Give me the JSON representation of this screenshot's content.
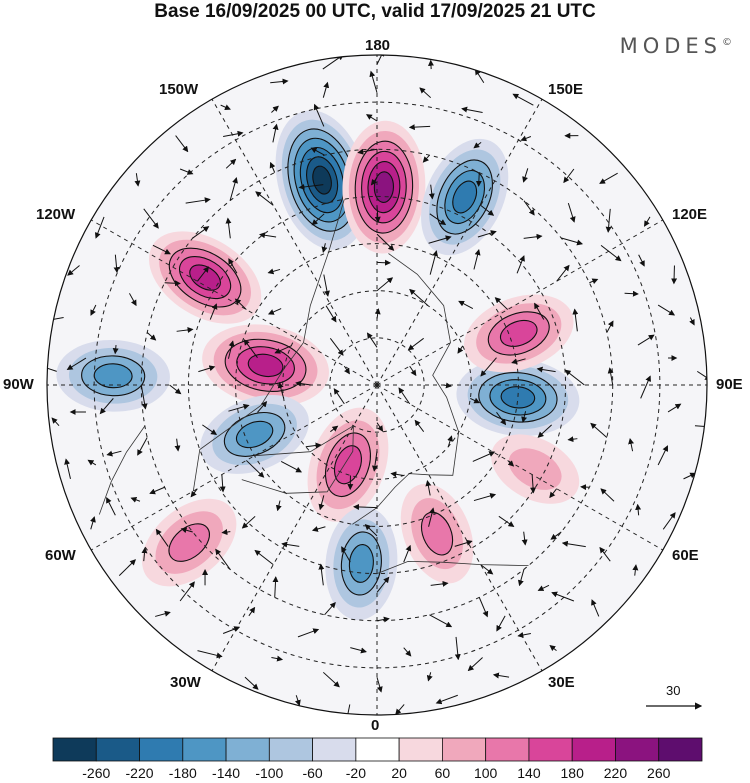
{
  "title": "Base 16/09/2025 00 UTC, valid 17/09/2025 21 UTC",
  "brand": "MODES",
  "brand_mark": "©",
  "longitude_labels": {
    "top": "180",
    "bottom": "0",
    "left": "90W",
    "right": "90E",
    "upper_left": "150W",
    "upper_right": "150E",
    "mid_left_upper": "120W",
    "mid_right_upper": "120E",
    "lower_left": "60W",
    "lower_right": "60E",
    "bottom_left": "30W",
    "bottom_right": "30E"
  },
  "vector_scale": {
    "label": "30"
  },
  "colorbar": {
    "ticks": [
      "-260",
      "-220",
      "-180",
      "-140",
      "-100",
      "-60",
      "-20",
      "20",
      "60",
      "100",
      "140",
      "180",
      "220",
      "260"
    ],
    "colors": [
      "#0e3a5a",
      "#1a5a88",
      "#2f7bb0",
      "#4e96c4",
      "#7fb0d4",
      "#aec6e0",
      "#d8dcec",
      "#ffffff",
      "#f7d8de",
      "#f0a8bc",
      "#e877aa",
      "#d9459a",
      "#b81f8a",
      "#8b137f",
      "#5e0d6e"
    ]
  },
  "anomaly_centers": [
    {
      "id": "neg-alaska",
      "lon": -165,
      "colat": 45,
      "value": -260
    },
    {
      "id": "pos-bering",
      "lon": 178,
      "colat": 42,
      "value": 220
    },
    {
      "id": "neg-east-siberia",
      "lon": 155,
      "colat": 44,
      "value": -180
    },
    {
      "id": "pos-canada-west",
      "lon": -122,
      "colat": 43,
      "value": 180
    },
    {
      "id": "neg-hudson",
      "lon": -92,
      "colat": 56,
      "value": -140
    },
    {
      "id": "pos-canada-arch",
      "lon": -100,
      "colat": 24,
      "value": 200
    },
    {
      "id": "neg-greenland-w",
      "lon": -68,
      "colat": 28,
      "value": -140
    },
    {
      "id": "pos-greenland",
      "lon": -20,
      "colat": 18,
      "value": 160
    },
    {
      "id": "neg-iceland",
      "lon": -5,
      "colat": 38,
      "value": -140
    },
    {
      "id": "pos-north-atlantic",
      "lon": -50,
      "colat": 52,
      "value": 120
    },
    {
      "id": "pos-scandinavia",
      "lon": 22,
      "colat": 34,
      "value": 100
    },
    {
      "id": "neg-siberia",
      "lon": 85,
      "colat": 30,
      "value": -180
    },
    {
      "id": "pos-central-siberia",
      "lon": 110,
      "colat": 32,
      "value": 140
    },
    {
      "id": "pos-kazakhstan",
      "lon": 62,
      "colat": 38,
      "value": 60
    }
  ]
}
